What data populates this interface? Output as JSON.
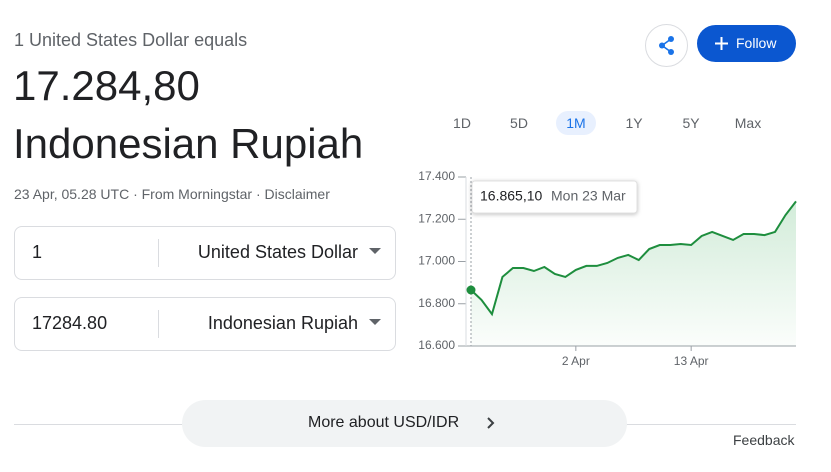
{
  "header": {
    "subtitle": "1 United States Dollar equals",
    "amount": "17.284,80",
    "currency": "Indonesian Rupiah",
    "meta": "23 Apr, 05.28 UTC · From Morningstar · Disclaimer"
  },
  "actions": {
    "follow": "Follow"
  },
  "converter": {
    "rows": [
      {
        "amount": "1",
        "currency": "United States Dollar"
      },
      {
        "amount": "17284.80",
        "currency": "Indonesian Rupiah"
      }
    ]
  },
  "ranges": {
    "options": [
      "1D",
      "5D",
      "1M",
      "1Y",
      "5Y",
      "Max"
    ],
    "selected": 2
  },
  "chart_data": {
    "type": "line",
    "color": "#1e8e3e",
    "x": [
      "23 Mar",
      "24 Mar",
      "25 Mar",
      "26 Mar",
      "27 Mar",
      "28 Mar",
      "29 Mar",
      "30 Mar",
      "31 Mar",
      "1 Apr",
      "2 Apr",
      "3 Apr",
      "4 Apr",
      "5 Apr",
      "6 Apr",
      "7 Apr",
      "8 Apr",
      "9 Apr",
      "10 Apr",
      "11 Apr",
      "12 Apr",
      "13 Apr",
      "14 Apr",
      "15 Apr",
      "16 Apr",
      "17 Apr",
      "18 Apr",
      "19 Apr",
      "20 Apr",
      "21 Apr",
      "22 Apr",
      "23 Apr"
    ],
    "values": [
      16865.1,
      16818,
      16751,
      16927,
      16969,
      16969,
      16955,
      16974,
      16941,
      16927,
      16960,
      16979,
      16979,
      16993,
      17017,
      17031,
      17007,
      17059,
      17078,
      17078,
      17083,
      17078,
      17121,
      17140,
      17121,
      17102,
      17130,
      17130,
      17125,
      17140,
      17220,
      17284.8
    ],
    "ylim": [
      16600,
      17400
    ],
    "yticks": [
      {
        "value": 17400,
        "label": "17.400"
      },
      {
        "value": 17200,
        "label": "17.200"
      },
      {
        "value": 17000,
        "label": "17.000"
      },
      {
        "value": 16800,
        "label": "16.800"
      },
      {
        "value": 16600,
        "label": "16.600"
      }
    ],
    "xticks": [
      "2 Apr",
      "13 Apr"
    ],
    "tooltip": {
      "label": "16.865,10",
      "date": "Mon 23 Mar"
    }
  },
  "footer": {
    "more": "More about USD/IDR",
    "feedback": "Feedback"
  }
}
